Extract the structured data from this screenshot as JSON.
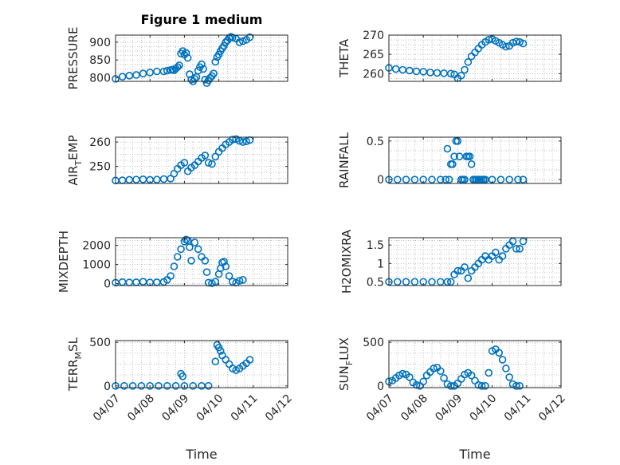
{
  "figure": {
    "title": "Figure 1 medium",
    "marker_color": "#0072bd"
  },
  "chart_data": [
    {
      "type": "scatter",
      "title": "Figure 1 medium",
      "ylabel": "PRESSURE",
      "ysub": "",
      "ytail": "",
      "xlabel": "",
      "xlim": [
        0,
        5
      ],
      "ylim": [
        790,
        920
      ],
      "yticks": [
        800,
        850,
        900
      ],
      "ytick_labels": [
        "800",
        "850",
        "900"
      ],
      "xticks": [
        0,
        1,
        2,
        3,
        4,
        5
      ],
      "xtick_labels": [],
      "grid": true,
      "series": [
        {
          "x": [
            0,
            0.2,
            0.4,
            0.6,
            0.8,
            1.0,
            1.2,
            1.4,
            1.5,
            1.6,
            1.65,
            1.7,
            1.75,
            1.8,
            1.85,
            1.9,
            1.95,
            2.0,
            2.05,
            2.1,
            2.15,
            2.2,
            2.25,
            2.3,
            2.35,
            2.4,
            2.45,
            2.5,
            2.55,
            2.6,
            2.65,
            2.7,
            2.75,
            2.8,
            2.85,
            2.9,
            2.95,
            3.0,
            3.05,
            3.1,
            3.15,
            3.2,
            3.25,
            3.3,
            3.35,
            3.4,
            3.5,
            3.6,
            3.7,
            3.8,
            3.9
          ],
          "y": [
            797,
            803,
            806,
            808,
            812,
            815,
            818,
            818,
            820,
            822,
            823,
            821,
            826,
            830,
            835,
            868,
            875,
            865,
            870,
            856,
            810,
            795,
            790,
            797,
            802,
            820,
            830,
            838,
            825,
            795,
            785,
            793,
            800,
            805,
            812,
            845,
            858,
            865,
            875,
            883,
            890,
            900,
            905,
            912,
            915,
            913,
            910,
            900,
            903,
            907,
            914
          ]
        }
      ]
    },
    {
      "type": "scatter",
      "title": "",
      "ylabel": "THETA",
      "ysub": "",
      "ytail": "",
      "xlabel": "",
      "xlim": [
        0,
        5
      ],
      "ylim": [
        258,
        270
      ],
      "yticks": [
        260,
        265,
        270
      ],
      "ytick_labels": [
        "260",
        "265",
        "270"
      ],
      "xticks": [
        0,
        1,
        2,
        3,
        4,
        5
      ],
      "xtick_labels": [],
      "grid": true,
      "series": [
        {
          "x": [
            0,
            0.2,
            0.4,
            0.6,
            0.8,
            1.0,
            1.2,
            1.4,
            1.6,
            1.8,
            1.9,
            2.0,
            2.1,
            2.2,
            2.3,
            2.4,
            2.5,
            2.6,
            2.7,
            2.8,
            2.9,
            3.0,
            3.1,
            3.2,
            3.3,
            3.4,
            3.5,
            3.6,
            3.7,
            3.8,
            3.9
          ],
          "y": [
            261.5,
            261.2,
            261,
            260.8,
            260.6,
            260.5,
            260.3,
            260.2,
            260.1,
            260,
            259.8,
            258.8,
            259.5,
            261,
            263,
            264.5,
            265.5,
            266.5,
            267.5,
            268.2,
            268.8,
            269,
            268.5,
            268,
            267.5,
            267,
            267.2,
            268,
            268.3,
            268.2,
            267.8
          ]
        }
      ]
    },
    {
      "type": "scatter",
      "title": "",
      "ylabel": "AIR",
      "ysub": "T",
      "ytail": "EMP",
      "xlabel": "",
      "xlim": [
        0,
        5
      ],
      "ylim": [
        243,
        262
      ],
      "yticks": [
        250,
        260
      ],
      "ytick_labels": [
        "250",
        "260"
      ],
      "xticks": [
        0,
        1,
        2,
        3,
        4,
        5
      ],
      "xtick_labels": [],
      "grid": true,
      "series": [
        {
          "x": [
            0,
            0.2,
            0.4,
            0.6,
            0.8,
            1.0,
            1.2,
            1.4,
            1.6,
            1.7,
            1.8,
            1.9,
            2.0,
            2.1,
            2.2,
            2.3,
            2.4,
            2.5,
            2.6,
            2.7,
            2.8,
            2.9,
            3.0,
            3.1,
            3.2,
            3.3,
            3.4,
            3.5,
            3.6,
            3.7,
            3.8,
            3.9
          ],
          "y": [
            244.2,
            244.3,
            244.5,
            244.6,
            244.7,
            244.5,
            244.6,
            244.8,
            245,
            247,
            249,
            250.5,
            251.5,
            248,
            249.5,
            250.5,
            252,
            253.5,
            254.5,
            251.5,
            251,
            254,
            256,
            257.5,
            259,
            260,
            261,
            261.2,
            260.5,
            260,
            260.3,
            260.8
          ]
        }
      ]
    },
    {
      "type": "scatter",
      "title": "",
      "ylabel": "RAINFALL",
      "ysub": "",
      "ytail": "",
      "xlabel": "",
      "xlim": [
        0,
        5
      ],
      "ylim": [
        -0.05,
        0.55
      ],
      "yticks": [
        0,
        0.5
      ],
      "ytick_labels": [
        "0",
        "0.5"
      ],
      "xticks": [
        0,
        1,
        2,
        3,
        4,
        5
      ],
      "xtick_labels": [],
      "grid": true,
      "series": [
        {
          "x": [
            0,
            0.25,
            0.5,
            0.75,
            1.0,
            1.25,
            1.5,
            1.65,
            1.7,
            1.75,
            1.8,
            1.85,
            1.9,
            1.95,
            2.0,
            2.05,
            2.1,
            2.15,
            2.2,
            2.25,
            2.3,
            2.35,
            2.4,
            2.45,
            2.5,
            2.55,
            2.6,
            2.65,
            2.7,
            2.75,
            2.8,
            3.0,
            3.25,
            3.5,
            3.75,
            3.9
          ],
          "y": [
            0,
            0,
            0,
            0,
            0,
            0,
            0,
            0,
            0.4,
            0,
            0.2,
            0.2,
            0.3,
            0.5,
            0.5,
            0.3,
            0,
            0,
            0,
            0.3,
            0.3,
            0.3,
            0.2,
            0,
            0,
            0,
            0,
            0,
            0,
            0,
            0,
            0,
            0,
            0,
            0,
            0
          ]
        }
      ]
    },
    {
      "type": "scatter",
      "title": "",
      "ylabel": "MIXDEPTH",
      "ysub": "",
      "ytail": "",
      "xlabel": "",
      "xlim": [
        0,
        5
      ],
      "ylim": [
        -100,
        2400
      ],
      "yticks": [
        0,
        1000,
        2000
      ],
      "ytick_labels": [
        "0",
        "1000",
        "2000"
      ],
      "xticks": [
        0,
        1,
        2,
        3,
        4,
        5
      ],
      "xtick_labels": [],
      "grid": true,
      "series": [
        {
          "x": [
            0,
            0.2,
            0.4,
            0.6,
            0.8,
            1.0,
            1.2,
            1.4,
            1.5,
            1.6,
            1.7,
            1.8,
            1.9,
            2.0,
            2.05,
            2.1,
            2.15,
            2.2,
            2.3,
            2.4,
            2.5,
            2.6,
            2.65,
            2.7,
            2.8,
            2.9,
            3.0,
            3.05,
            3.1,
            3.15,
            3.2,
            3.3,
            3.4,
            3.5,
            3.6,
            3.7
          ],
          "y": [
            50,
            80,
            60,
            70,
            100,
            60,
            70,
            90,
            200,
            400,
            900,
            1400,
            1800,
            2200,
            2300,
            2250,
            1900,
            1200,
            2150,
            1800,
            1400,
            1200,
            600,
            50,
            20,
            100,
            500,
            800,
            1100,
            1150,
            900,
            400,
            100,
            50,
            150,
            200
          ]
        }
      ]
    },
    {
      "type": "scatter",
      "title": "",
      "ylabel": "H2OMIXRA",
      "ysub": "",
      "ytail": "",
      "xlabel": "",
      "xlim": [
        0,
        5
      ],
      "ylim": [
        0.4,
        1.7
      ],
      "yticks": [
        0.5,
        1,
        1.5
      ],
      "ytick_labels": [
        "0.5",
        "1",
        "1.5"
      ],
      "xticks": [
        0,
        1,
        2,
        3,
        4,
        5
      ],
      "xtick_labels": [],
      "grid": true,
      "series": [
        {
          "x": [
            0,
            0.25,
            0.5,
            0.75,
            1.0,
            1.25,
            1.5,
            1.7,
            1.8,
            1.9,
            2.0,
            2.1,
            2.2,
            2.3,
            2.4,
            2.5,
            2.6,
            2.7,
            2.8,
            2.9,
            3.0,
            3.1,
            3.2,
            3.3,
            3.4,
            3.5,
            3.6,
            3.7,
            3.8,
            3.9
          ],
          "y": [
            0.5,
            0.5,
            0.5,
            0.5,
            0.5,
            0.5,
            0.5,
            0.5,
            0.5,
            0.7,
            0.8,
            0.8,
            0.9,
            0.6,
            0.8,
            0.9,
            1.0,
            1.1,
            1.2,
            1.1,
            1.2,
            1.3,
            1.1,
            1.2,
            1.4,
            1.5,
            1.6,
            1.4,
            1.4,
            1.6
          ]
        }
      ]
    },
    {
      "type": "scatter",
      "title": "",
      "ylabel": "TERR",
      "ysub": "M",
      "ytail": "SL",
      "xlabel": "Time",
      "xlim": [
        0,
        5
      ],
      "ylim": [
        -20,
        520
      ],
      "yticks": [
        0,
        500
      ],
      "ytick_labels": [
        "0",
        "500"
      ],
      "xticks": [
        0,
        1,
        2,
        3,
        4,
        5
      ],
      "xtick_labels": [
        "04/07",
        "04/08",
        "04/09",
        "04/10",
        "04/11",
        "04/12"
      ],
      "grid": true,
      "series": [
        {
          "x": [
            0,
            0.25,
            0.5,
            0.75,
            1.0,
            1.25,
            1.5,
            1.75,
            1.9,
            1.95,
            2.0,
            2.25,
            2.5,
            2.7,
            2.9,
            2.95,
            3.0,
            3.05,
            3.1,
            3.2,
            3.3,
            3.4,
            3.5,
            3.6,
            3.7,
            3.8,
            3.9
          ],
          "y": [
            0,
            0,
            0,
            0,
            0,
            0,
            0,
            0,
            140,
            110,
            0,
            0,
            0,
            0,
            280,
            470,
            440,
            400,
            350,
            300,
            250,
            200,
            180,
            200,
            230,
            260,
            300
          ]
        }
      ]
    },
    {
      "type": "scatter",
      "title": "",
      "ylabel": "SUN",
      "ysub": "F",
      "ytail": "LUX",
      "xlabel": "Time",
      "xlim": [
        0,
        5
      ],
      "ylim": [
        -20,
        520
      ],
      "yticks": [
        0,
        500
      ],
      "ytick_labels": [
        "0",
        "500"
      ],
      "xticks": [
        0,
        1,
        2,
        3,
        4,
        5
      ],
      "xtick_labels": [
        "04/07",
        "04/08",
        "04/09",
        "04/10",
        "04/11",
        "04/12"
      ],
      "grid": true,
      "series": [
        {
          "x": [
            0,
            0.1,
            0.2,
            0.3,
            0.4,
            0.5,
            0.6,
            0.7,
            0.8,
            0.9,
            1.0,
            1.1,
            1.2,
            1.3,
            1.4,
            1.5,
            1.6,
            1.7,
            1.8,
            1.9,
            2.0,
            2.1,
            2.2,
            2.3,
            2.4,
            2.5,
            2.6,
            2.7,
            2.8,
            2.9,
            3.0,
            3.1,
            3.2,
            3.3,
            3.4,
            3.5,
            3.6,
            3.7,
            3.8
          ],
          "y": [
            50,
            60,
            90,
            120,
            140,
            130,
            100,
            40,
            10,
            0,
            50,
            120,
            160,
            200,
            210,
            170,
            90,
            20,
            0,
            0,
            30,
            80,
            130,
            150,
            120,
            60,
            10,
            0,
            0,
            150,
            400,
            420,
            380,
            300,
            200,
            100,
            20,
            0,
            0
          ]
        }
      ]
    }
  ]
}
